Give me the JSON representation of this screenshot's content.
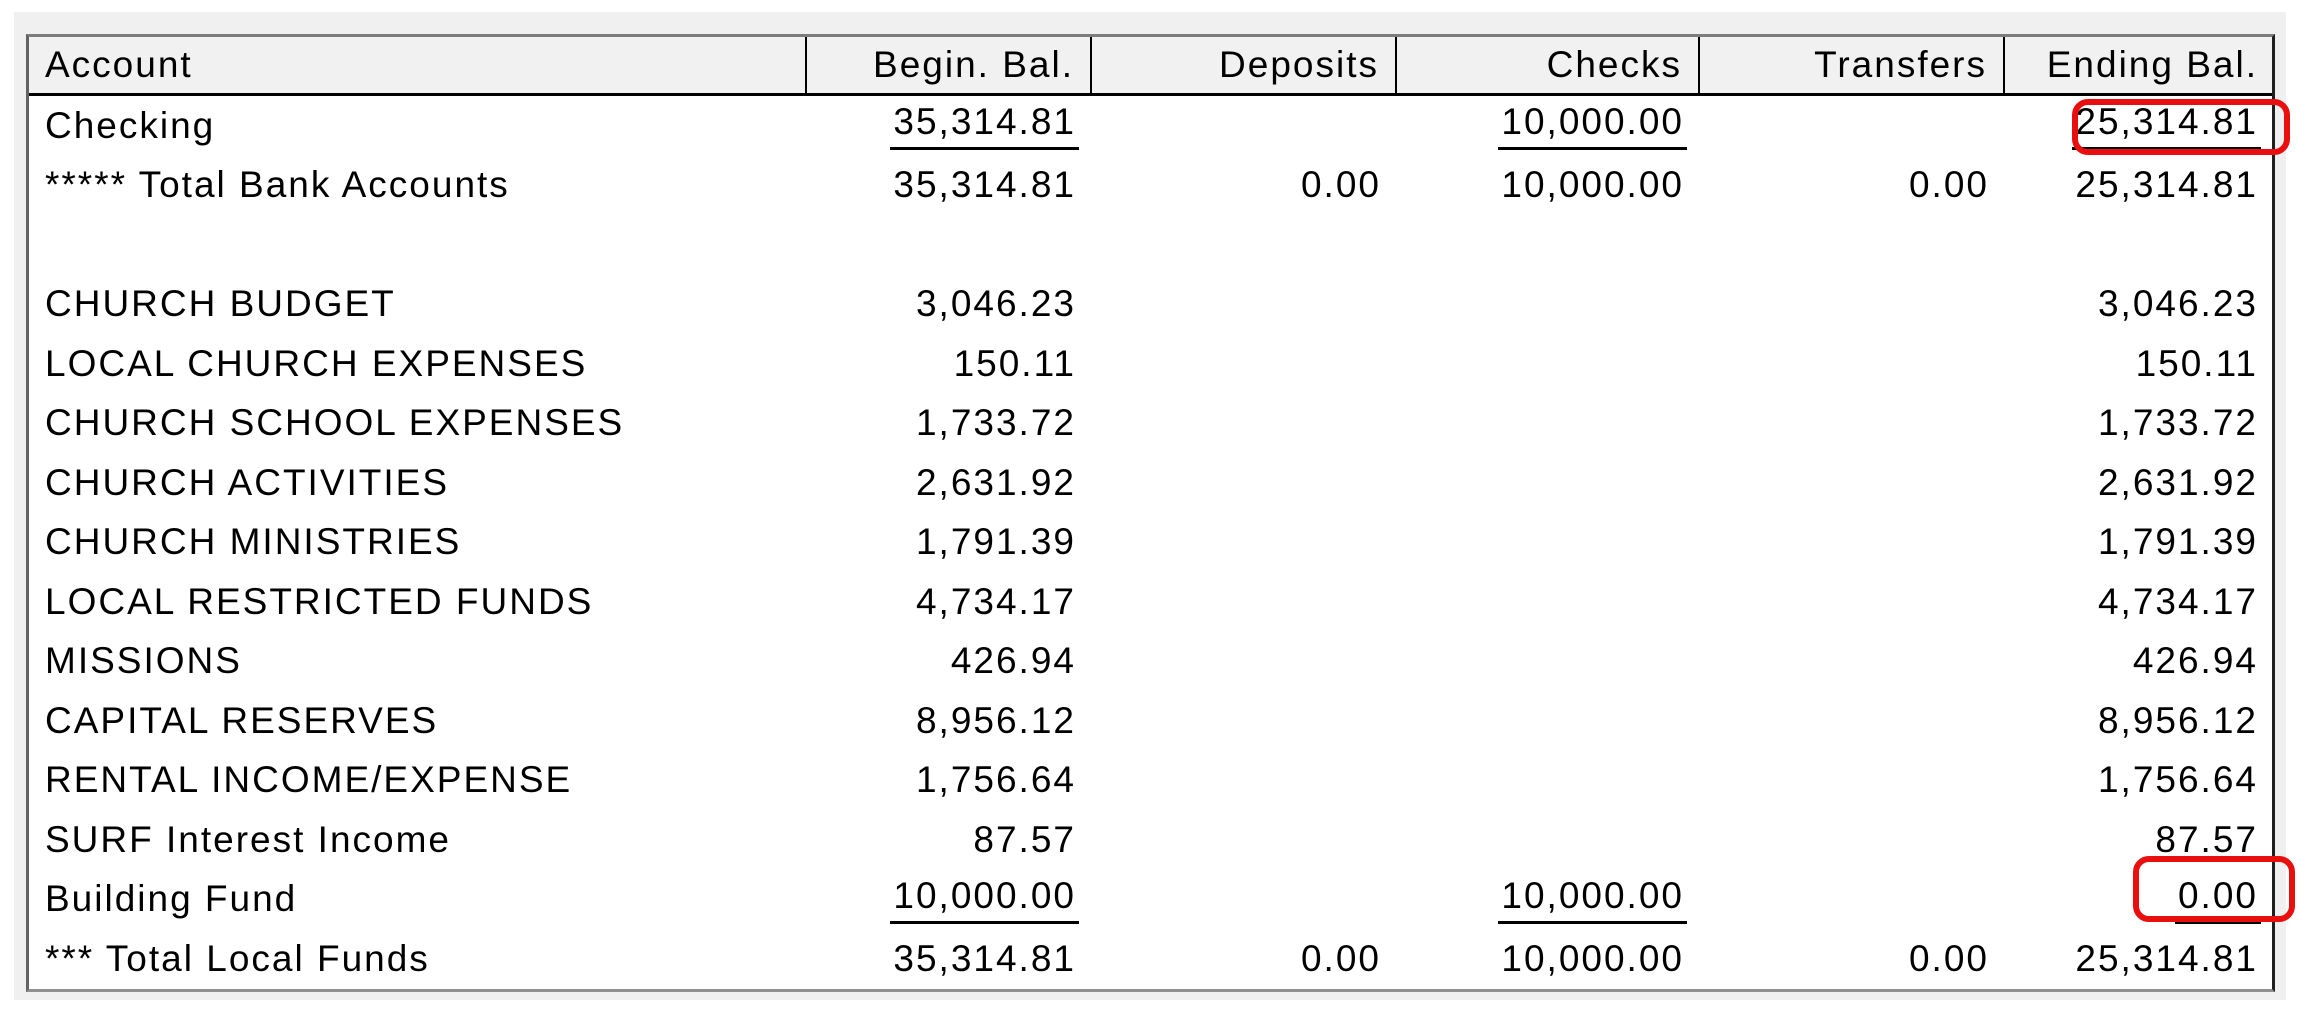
{
  "table": {
    "columns": [
      {
        "label": "Account"
      },
      {
        "label": "Begin. Bal."
      },
      {
        "label": "Deposits"
      },
      {
        "label": "Checks"
      },
      {
        "label": "Transfers"
      },
      {
        "label": "Ending Bal."
      }
    ],
    "rows": [
      {
        "account": "Checking",
        "begin": "35,314.81",
        "deposits": "",
        "checks": "10,000.00",
        "transfers": "",
        "ending": "25,314.81",
        "underline": true,
        "ending_highlight": true
      },
      {
        "account": "***** Total Bank Accounts",
        "begin": "35,314.81",
        "deposits": "0.00",
        "checks": "10,000.00",
        "transfers": "0.00",
        "ending": "25,314.81",
        "underline": false,
        "ending_highlight": false
      },
      {
        "account": "",
        "begin": "",
        "deposits": "",
        "checks": "",
        "transfers": "",
        "ending": "",
        "underline": false,
        "ending_highlight": false
      },
      {
        "account": "CHURCH BUDGET",
        "begin": "3,046.23",
        "deposits": "",
        "checks": "",
        "transfers": "",
        "ending": "3,046.23",
        "underline": false,
        "ending_highlight": false
      },
      {
        "account": "LOCAL CHURCH EXPENSES",
        "begin": "150.11",
        "deposits": "",
        "checks": "",
        "transfers": "",
        "ending": "150.11",
        "underline": false,
        "ending_highlight": false
      },
      {
        "account": "CHURCH SCHOOL EXPENSES",
        "begin": "1,733.72",
        "deposits": "",
        "checks": "",
        "transfers": "",
        "ending": "1,733.72",
        "underline": false,
        "ending_highlight": false
      },
      {
        "account": "CHURCH ACTIVITIES",
        "begin": "2,631.92",
        "deposits": "",
        "checks": "",
        "transfers": "",
        "ending": "2,631.92",
        "underline": false,
        "ending_highlight": false
      },
      {
        "account": "CHURCH MINISTRIES",
        "begin": "1,791.39",
        "deposits": "",
        "checks": "",
        "transfers": "",
        "ending": "1,791.39",
        "underline": false,
        "ending_highlight": false
      },
      {
        "account": "LOCAL RESTRICTED FUNDS",
        "begin": "4,734.17",
        "deposits": "",
        "checks": "",
        "transfers": "",
        "ending": "4,734.17",
        "underline": false,
        "ending_highlight": false
      },
      {
        "account": "MISSIONS",
        "begin": "426.94",
        "deposits": "",
        "checks": "",
        "transfers": "",
        "ending": "426.94",
        "underline": false,
        "ending_highlight": false
      },
      {
        "account": "CAPITAL RESERVES",
        "begin": "8,956.12",
        "deposits": "",
        "checks": "",
        "transfers": "",
        "ending": "8,956.12",
        "underline": false,
        "ending_highlight": false
      },
      {
        "account": "RENTAL INCOME/EXPENSE",
        "begin": "1,756.64",
        "deposits": "",
        "checks": "",
        "transfers": "",
        "ending": "1,756.64",
        "underline": false,
        "ending_highlight": false
      },
      {
        "account": "SURF Interest Income",
        "begin": "87.57",
        "deposits": "",
        "checks": "",
        "transfers": "",
        "ending": "87.57",
        "underline": false,
        "ending_highlight": false
      },
      {
        "account": "Building Fund",
        "begin": "10,000.00",
        "deposits": "",
        "checks": "10,000.00",
        "transfers": "",
        "ending": "0.00",
        "underline": true,
        "ending_highlight": true
      },
      {
        "account": "*** Total Local Funds",
        "begin": "35,314.81",
        "deposits": "0.00",
        "checks": "10,000.00",
        "transfers": "0.00",
        "ending": "25,314.81",
        "underline": false,
        "ending_highlight": false
      }
    ],
    "colors": {
      "highlight": "#e90f0f",
      "header_background": "#f1f1f1",
      "frame_background": "#f0f0f0",
      "text": "#000000"
    }
  }
}
